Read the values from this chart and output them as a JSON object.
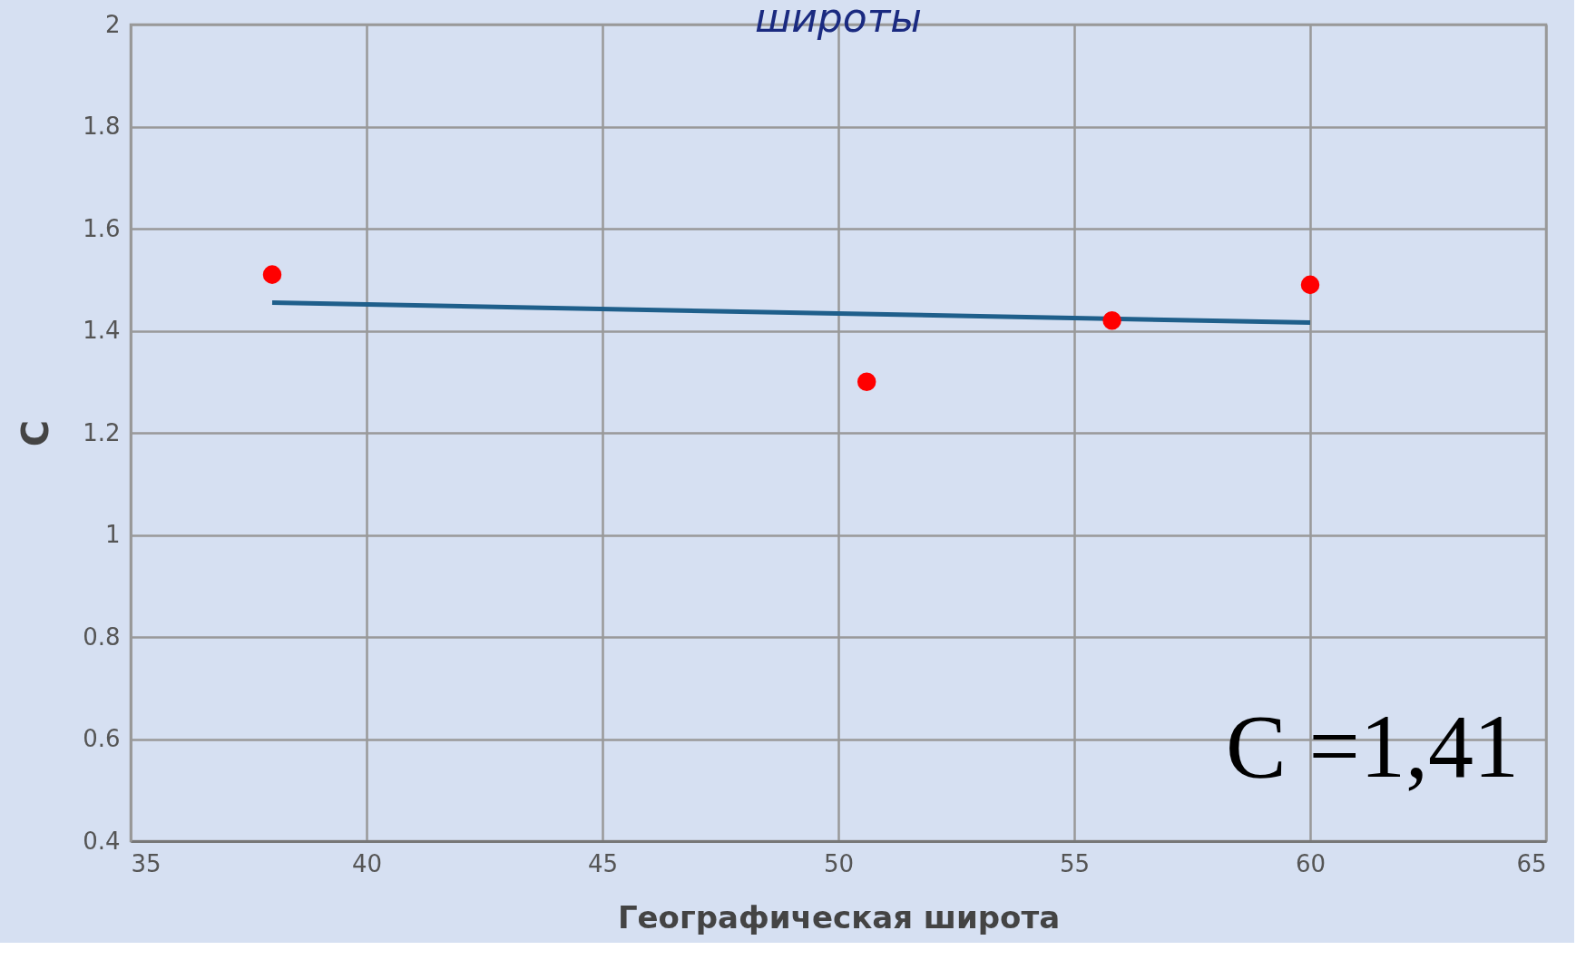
{
  "chart_data": {
    "type": "scatter",
    "title": "широты",
    "xlabel": "Географическая широта",
    "ylabel": "C",
    "xlim": [
      35,
      65
    ],
    "xticks": [
      35,
      40,
      45,
      50,
      55,
      60,
      65
    ],
    "ylim": [
      0.4,
      2
    ],
    "yticks": [
      0.4,
      0.6,
      0.8,
      1,
      1.2,
      1.4,
      1.6,
      1.8,
      2
    ],
    "grid": true,
    "marker": "circle",
    "series": [
      {
        "color": "#ff0000",
        "x": [
          38,
          50.6,
          55.8,
          60
        ],
        "values": [
          1.51,
          1.3,
          1.42,
          1.49
        ]
      },
      {
        "type": "line",
        "color": "#1f5f8b",
        "marker": "none",
        "line_style": "solid",
        "x": [
          38,
          60
        ],
        "values": [
          1.455,
          1.416
        ]
      }
    ],
    "annotations": [
      "C =1,41"
    ]
  }
}
